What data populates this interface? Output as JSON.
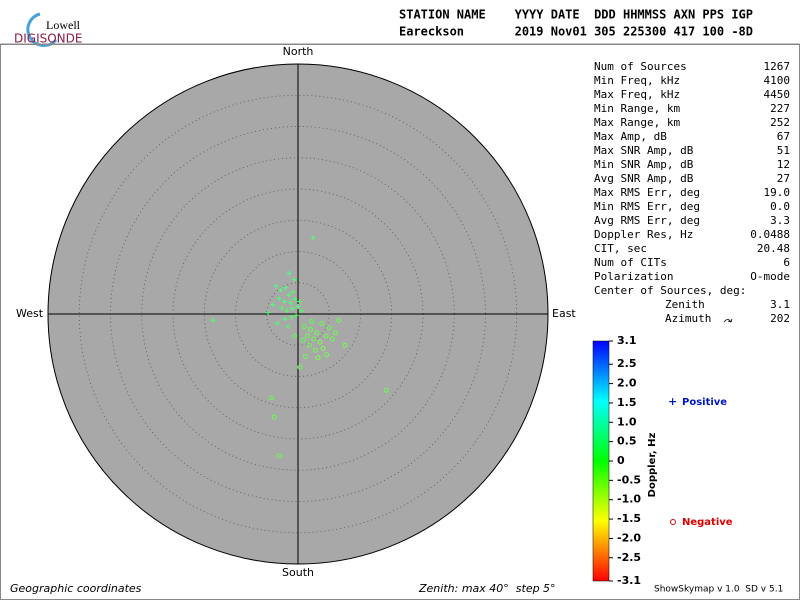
{
  "logo": {
    "top": "Lowell",
    "bottom": "DIGISONDE"
  },
  "header": {
    "columns": "STATION NAME    YYYY DATE  DDD HHMMSS AXN PPS IGP",
    "values": "Eareckson       2019 Nov01 305 225300 417 100 -8D"
  },
  "stats": {
    "rows": [
      [
        "Num of Sources",
        "1267"
      ],
      [
        "Min Freq, kHz",
        "4100"
      ],
      [
        "Max Freq, kHz",
        "4450"
      ],
      [
        "Min Range, km",
        "227"
      ],
      [
        "Max Range, km",
        "252"
      ],
      [
        "Max Amp, dB",
        "67"
      ],
      [
        "Max SNR Amp, dB",
        "51"
      ],
      [
        "Min SNR Amp, dB",
        "12"
      ],
      [
        "Avg SNR Amp, dB",
        "27"
      ],
      [
        "Max RMS Err, deg",
        "19.0"
      ],
      [
        "Min RMS Err, deg",
        "0.0"
      ],
      [
        "Avg RMS Err, deg",
        "3.3"
      ],
      [
        "Doppler Res, Hz",
        "0.0488"
      ],
      [
        "CIT, sec",
        "20.48"
      ],
      [
        "Num of CITs",
        "6"
      ],
      [
        "Polarization",
        "O-mode"
      ]
    ],
    "center_title": "Center of Sources, deg:",
    "center_rows": [
      [
        "Zenith",
        "3.1"
      ],
      [
        "Azimuth",
        "202"
      ]
    ]
  },
  "chart_data": {
    "type": "skymap",
    "directions": {
      "north": "North",
      "south": "South",
      "west": "West",
      "east": "East"
    },
    "rlim": [
      0,
      40
    ],
    "rticks": [
      5,
      10,
      15,
      20,
      25,
      30,
      35,
      40
    ],
    "points": {
      "x": [
        -3.5,
        -2.8,
        -2.0,
        -1.5,
        -0.8,
        -3.0,
        -2.2,
        -1.2,
        -0.5,
        0.3,
        -2.6,
        -1.8,
        -0.9,
        0.0,
        -4.0,
        -1.0,
        -2.1,
        -0.3,
        0.6,
        -0.6,
        -1.4,
        -4.8,
        -3.3,
        -1.6,
        2.4,
        -13.6,
        1.0,
        2.0,
        3.0,
        1.5,
        2.5,
        3.5,
        4.5,
        5.5,
        4.0,
        2.8,
        1.8,
        0.8,
        5.0,
        6.0,
        3.8,
        2.2,
        4.6,
        3.2,
        1.2,
        6.5,
        -0.5,
        -4.2,
        -3.0,
        14.1,
        -3.8,
        7.5,
        0.3
      ],
      "y": [
        4.5,
        3.8,
        4.2,
        3.0,
        3.5,
        2.5,
        2.0,
        1.8,
        2.4,
        2.0,
        1.0,
        0.5,
        0.9,
        1.2,
        1.5,
        -0.5,
        -0.8,
        -0.2,
        0.5,
        5.5,
        6.5,
        0.2,
        -1.5,
        -2.0,
        12.2,
        -1.0,
        -2.0,
        -2.5,
        -3.0,
        -3.5,
        -4.0,
        -4.5,
        -3.5,
        -4.0,
        -5.5,
        -5.8,
        -5.0,
        -4.2,
        -2.2,
        -3.0,
        -1.5,
        -1.2,
        -6.5,
        -7.0,
        -6.8,
        -1.0,
        -3.5,
        -13.4,
        -22.7,
        -12.2,
        -16.5,
        -5.0,
        -8.5
      ],
      "doppler": [
        0.4,
        0.3,
        0.5,
        0.3,
        0.2,
        0.3,
        0.4,
        0.3,
        0.2,
        0.2,
        0.3,
        0.2,
        0.3,
        0.2,
        0.4,
        0.2,
        0.3,
        0.1,
        0.1,
        0.3,
        0.4,
        0.3,
        0.2,
        0.2,
        0.3,
        0.2,
        -0.1,
        -0.2,
        -0.3,
        -0.2,
        -0.3,
        -0.4,
        -0.3,
        -0.2,
        -0.4,
        -0.3,
        -0.2,
        -0.1,
        -0.2,
        -0.3,
        -0.2,
        -0.1,
        -0.3,
        -0.4,
        -0.2,
        -0.2,
        -0.1,
        -0.2,
        -0.2,
        -0.3,
        -0.2,
        -0.3,
        -0.2
      ]
    },
    "colorbar": {
      "label": "Doppler, Hz",
      "lim": [
        -3.1,
        3.1
      ],
      "ticks": [
        3.1,
        2.5,
        {
          "value": 2,
          "label": "2.0"
        },
        1.5,
        {
          "value": 1,
          "label": "1.0"
        },
        0.5,
        0,
        -0.5,
        {
          "value": -1,
          "label": "-1.0"
        },
        -1.5,
        {
          "value": -2,
          "label": "-2.0"
        },
        -2.5,
        -3.1
      ]
    },
    "legend": {
      "positive": "Positive",
      "negative": "Negative"
    }
  },
  "footer": {
    "left": "Geographic coordinates",
    "center": "Zenith: max 40°  step 5°",
    "right": "ShowSkymap v 1.0  SD v 5.1"
  }
}
